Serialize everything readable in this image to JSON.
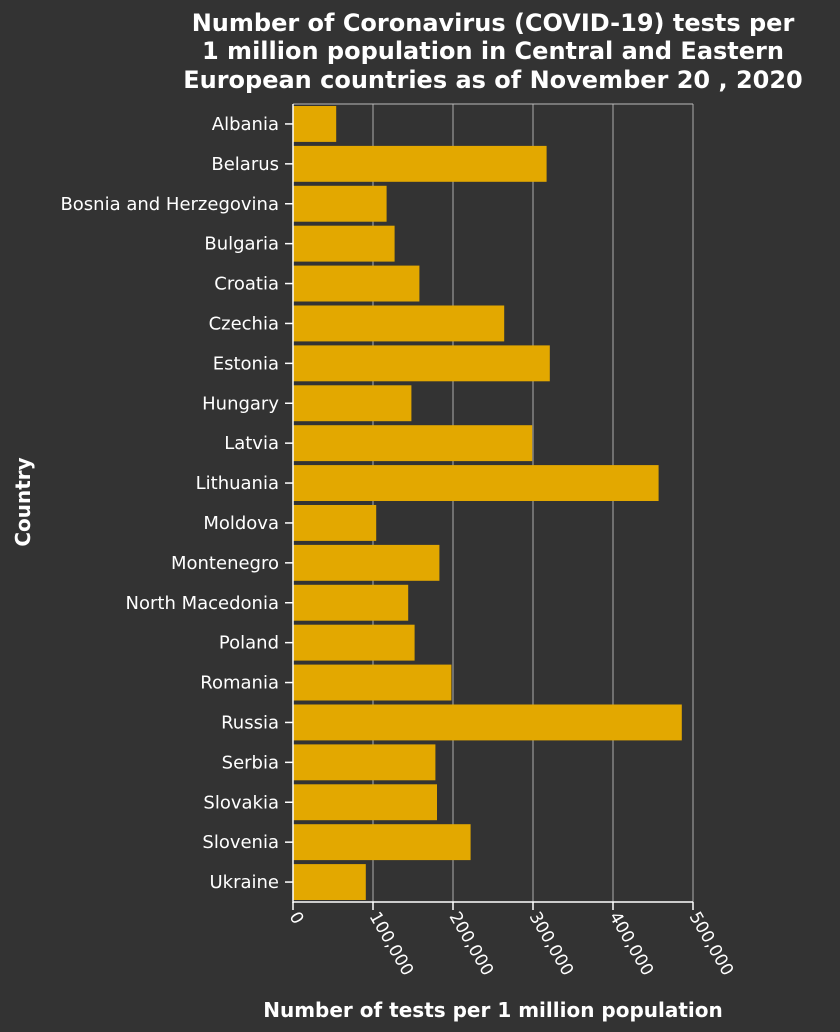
{
  "chart_data": {
    "type": "bar",
    "orientation": "horizontal",
    "title_lines": [
      "Number of Coronavirus (COVID-19) tests per",
      "1 million population in Central and Eastern",
      "European countries as of November 20 , 2020"
    ],
    "xlabel": "Number of tests per 1 million population",
    "ylabel": "Country",
    "xlim": [
      0,
      500000
    ],
    "x_ticks": [
      0,
      100000,
      200000,
      300000,
      400000,
      500000
    ],
    "x_tick_labels": [
      "0",
      "100,000",
      "200,000",
      "300,000",
      "400,000",
      "500,000"
    ],
    "grid": "vertical",
    "bar_color": "#e3a800",
    "categories": [
      "Albania",
      "Belarus",
      "Bosnia and Herzegovina",
      "Bulgaria",
      "Croatia",
      "Czechia",
      "Estonia",
      "Hungary",
      "Latvia",
      "Lithuania",
      "Moldova",
      "Montenegro",
      "North Macedonia",
      "Poland",
      "Romania",
      "Russia",
      "Serbia",
      "Slovakia",
      "Slovenia",
      "Ukraine"
    ],
    "values": [
      54000,
      317000,
      117000,
      127000,
      158000,
      264000,
      321000,
      148000,
      299000,
      457000,
      104000,
      183000,
      144000,
      152000,
      198000,
      486000,
      178000,
      180000,
      222000,
      91000
    ]
  }
}
